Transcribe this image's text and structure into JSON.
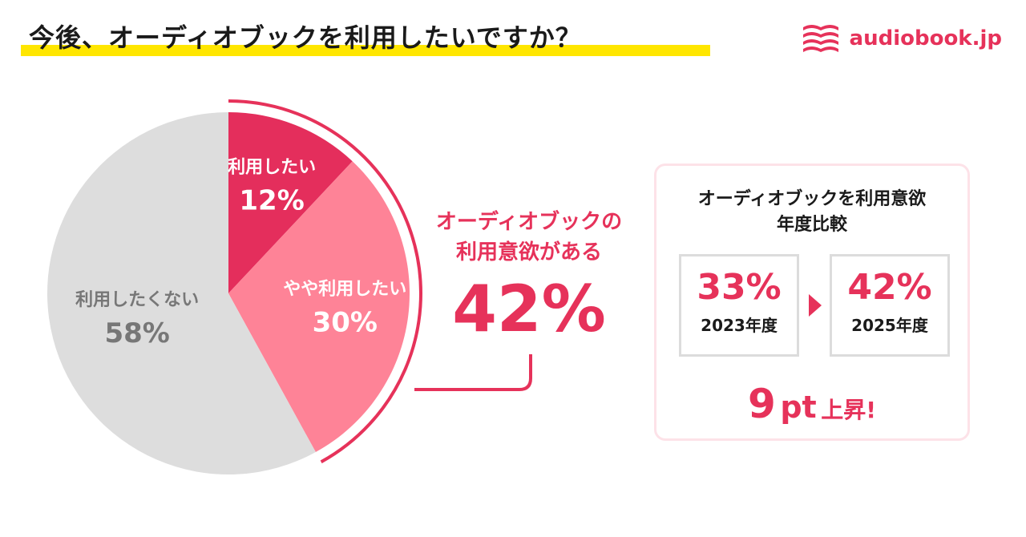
{
  "title": "今後、オーディオブックを利用したいですか？",
  "logo": {
    "text": "audiobook.jp",
    "icon": "book-stack-icon",
    "color": "#e6325a"
  },
  "chart_data": {
    "type": "pie",
    "slices": [
      {
        "label": "利用したい",
        "value": 12,
        "display": "12%",
        "color": "#e42e5c"
      },
      {
        "label": "やや利用したい",
        "value": 30,
        "display": "30%",
        "color": "#fe8397"
      },
      {
        "label": "利用したくない",
        "value": 58,
        "display": "58%",
        "color": "#dddddd"
      }
    ],
    "callout": {
      "line1": "オーディオブックの",
      "line2": "利用意欲がある",
      "value": "42%"
    }
  },
  "comparison": {
    "title_line1": "オーディオブックを利用意欲",
    "title_line2": "年度比較",
    "before": {
      "value": "33%",
      "year": "2023年度"
    },
    "after": {
      "value": "42%",
      "year": "2025年度"
    },
    "rise": {
      "number": "9",
      "unit": "pt",
      "text": "上昇!"
    }
  },
  "colors": {
    "accent": "#e6325a",
    "highlight": "#ffe600",
    "neutral": "#dddddd"
  }
}
